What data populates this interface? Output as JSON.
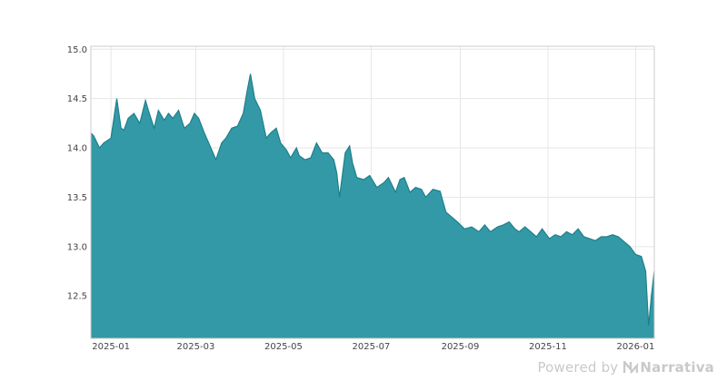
{
  "chart_data": {
    "type": "area",
    "title": "",
    "xlabel": "",
    "ylabel": "",
    "ylim": [
      12.07,
      15.03
    ],
    "grid": true,
    "colors": {
      "fill": "#3399a6",
      "line": "#1f7f8b",
      "grid": "#e6e6e6",
      "frame": "#cccccc"
    },
    "x_ticks": [
      "2025-01",
      "2025-03",
      "2025-05",
      "2025-07",
      "2025-09",
      "2025-11",
      "2026-01"
    ],
    "y_ticks": [
      "12.5",
      "13.0",
      "13.5",
      "14.0",
      "14.5",
      "15.0"
    ],
    "x_range": [
      "2024-12-18",
      "2026-01-14"
    ],
    "x": [
      "2024-12-18",
      "2024-12-20",
      "2024-12-24",
      "2024-12-27",
      "2025-01-01",
      "2025-01-05",
      "2025-01-08",
      "2025-01-10",
      "2025-01-13",
      "2025-01-17",
      "2025-01-21",
      "2025-01-25",
      "2025-01-27",
      "2025-01-31",
      "2025-02-03",
      "2025-02-07",
      "2025-02-10",
      "2025-02-13",
      "2025-02-17",
      "2025-02-21",
      "2025-02-25",
      "2025-02-28",
      "2025-03-03",
      "2025-03-07",
      "2025-03-10",
      "2025-03-13",
      "2025-03-15",
      "2025-03-19",
      "2025-03-22",
      "2025-03-26",
      "2025-03-30",
      "2025-04-03",
      "2025-04-06",
      "2025-04-08",
      "2025-04-11",
      "2025-04-15",
      "2025-04-19",
      "2025-04-22",
      "2025-04-26",
      "2025-04-29",
      "2025-05-03",
      "2025-05-06",
      "2025-05-10",
      "2025-05-12",
      "2025-05-16",
      "2025-05-20",
      "2025-05-24",
      "2025-05-28",
      "2025-06-01",
      "2025-06-05",
      "2025-06-07",
      "2025-06-09",
      "2025-06-13",
      "2025-06-16",
      "2025-06-18",
      "2025-06-21",
      "2025-06-26",
      "2025-06-30",
      "2025-07-05",
      "2025-07-10",
      "2025-07-13",
      "2025-07-18",
      "2025-07-21",
      "2025-07-24",
      "2025-07-28",
      "2025-08-01",
      "2025-08-05",
      "2025-08-08",
      "2025-08-13",
      "2025-08-18",
      "2025-08-22",
      "2025-08-26",
      "2025-08-30",
      "2025-09-04",
      "2025-09-09",
      "2025-09-14",
      "2025-09-18",
      "2025-09-22",
      "2025-09-27",
      "2025-10-01",
      "2025-10-05",
      "2025-10-09",
      "2025-10-12",
      "2025-10-16",
      "2025-10-20",
      "2025-10-24",
      "2025-10-28",
      "2025-11-02",
      "2025-11-06",
      "2025-11-10",
      "2025-11-14",
      "2025-11-18",
      "2025-11-22",
      "2025-11-26",
      "2025-11-30",
      "2025-12-04",
      "2025-12-08",
      "2025-12-12",
      "2025-12-16",
      "2025-12-20",
      "2025-12-24",
      "2025-12-28",
      "2026-01-01",
      "2026-01-05",
      "2026-01-08",
      "2026-01-10",
      "2026-01-12",
      "2026-01-14"
    ],
    "series": [
      {
        "values": [
          14.15,
          14.12,
          14.0,
          14.05,
          14.1,
          14.5,
          14.2,
          14.18,
          14.3,
          14.35,
          14.25,
          14.48,
          14.38,
          14.2,
          14.38,
          14.28,
          14.35,
          14.3,
          14.38,
          14.2,
          14.25,
          14.35,
          14.3,
          14.15,
          14.05,
          13.95,
          13.88,
          14.05,
          14.1,
          14.2,
          14.22,
          14.35,
          14.6,
          14.75,
          14.5,
          14.38,
          14.1,
          14.15,
          14.2,
          14.05,
          13.98,
          13.9,
          14.0,
          13.92,
          13.88,
          13.9,
          14.05,
          13.95,
          13.95,
          13.88,
          13.75,
          13.5,
          13.95,
          14.02,
          13.85,
          13.7,
          13.68,
          13.72,
          13.6,
          13.65,
          13.7,
          13.55,
          13.68,
          13.7,
          13.55,
          13.6,
          13.58,
          13.5,
          13.58,
          13.56,
          13.35,
          13.3,
          13.25,
          13.18,
          13.2,
          13.15,
          13.22,
          13.15,
          13.2,
          13.22,
          13.25,
          13.18,
          13.15,
          13.2,
          13.15,
          13.1,
          13.18,
          13.08,
          13.12,
          13.1,
          13.15,
          13.12,
          13.18,
          13.1,
          13.08,
          13.06,
          13.1,
          13.1,
          13.12,
          13.1,
          13.05,
          13.0,
          12.92,
          12.9,
          12.75,
          12.2,
          12.5,
          12.75
        ]
      }
    ]
  },
  "watermark": {
    "prefix": "Powered by",
    "brand": "Narrativa"
  }
}
